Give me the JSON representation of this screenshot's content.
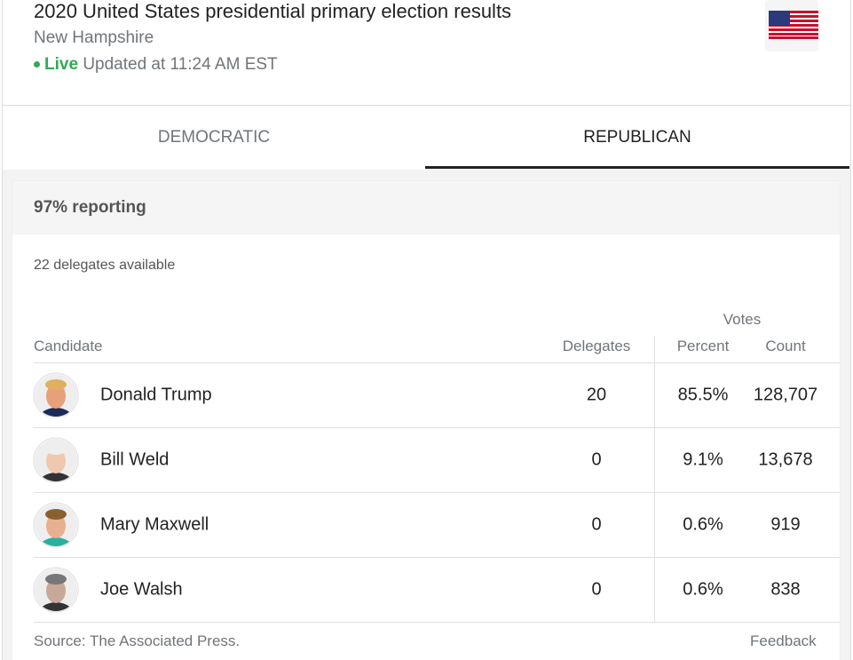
{
  "header": {
    "title": "2020 United States presidential primary election results",
    "subtitle": "New Hampshire",
    "live": "Live",
    "updated": "Updated at 11:24 AM EST"
  },
  "tabs": [
    "DEMOCRATIC",
    "REPUBLICAN"
  ],
  "reporting": "97% reporting",
  "delegates_available": "22 delegates available",
  "table": {
    "group_header": "Votes",
    "columns": [
      "Candidate",
      "Delegates",
      "Percent",
      "Count"
    ],
    "rows": [
      [
        "Donald Trump",
        "20",
        "85.5%",
        "128,707"
      ],
      [
        "Bill Weld",
        "0",
        "9.1%",
        "13,678"
      ],
      [
        "Mary Maxwell",
        "0",
        "0.6%",
        "919"
      ],
      [
        "Joe Walsh",
        "0",
        "0.6%",
        "838"
      ]
    ]
  },
  "footer": {
    "source": "Source: The Associated Press.",
    "feedback": "Feedback"
  }
}
